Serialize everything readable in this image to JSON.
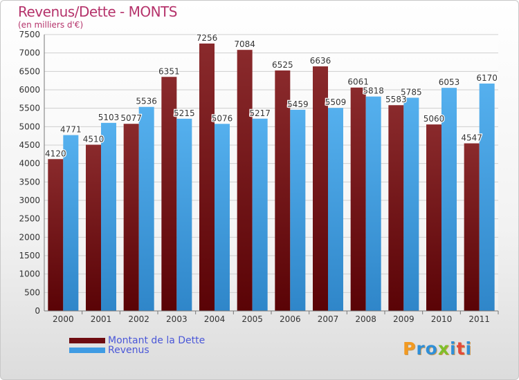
{
  "title": "Revenus/Dette - MONTS",
  "subtitle": "(en milliers d'€)",
  "brand": {
    "letters": [
      "P",
      "r",
      "o",
      "x",
      "i",
      "t",
      "i"
    ],
    "colors": [
      "#f29a22",
      "#2f8fd8",
      "#2f8fd8",
      "#7fbf2a",
      "#2f8fd8",
      "#e24a3b",
      "#2f8fd8"
    ]
  },
  "colors": {
    "dette": "#6e0b10",
    "revenus": "#3f9be3",
    "title": "#b5336b",
    "legend_text": "#4a57d8"
  },
  "chart_data": {
    "type": "bar",
    "categories": [
      "2000",
      "2001",
      "2002",
      "2003",
      "2004",
      "2005",
      "2006",
      "2007",
      "2008",
      "2009",
      "2010",
      "2011"
    ],
    "series": [
      {
        "name": "Montant de la Dette",
        "values": [
          4120,
          4510,
          5077,
          6351,
          7256,
          7084,
          6525,
          6636,
          6061,
          5583,
          5060,
          4547
        ],
        "color": "#6e0b10"
      },
      {
        "name": "Revenus",
        "values": [
          4771,
          5103,
          5536,
          5215,
          5076,
          5217,
          5459,
          5509,
          5818,
          5785,
          6053,
          6170
        ],
        "color": "#3f9be3"
      }
    ],
    "ylim": [
      0,
      7500
    ],
    "yticks": [
      0,
      500,
      1000,
      1500,
      2000,
      2500,
      3000,
      3500,
      4000,
      4500,
      5000,
      5500,
      6000,
      6500,
      7000,
      7500
    ],
    "grid": true,
    "legend": "bottom-left"
  }
}
